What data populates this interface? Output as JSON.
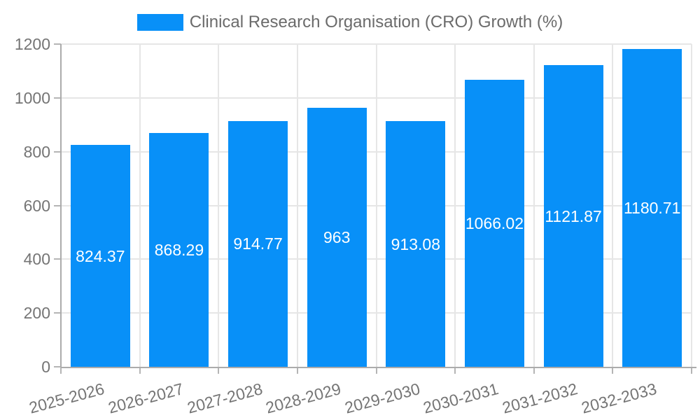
{
  "chart_data": {
    "type": "bar",
    "title": "Clinical Research Organisation (CRO) Growth (%)",
    "categories": [
      "2025-2026",
      "2026-2027",
      "2027-2028",
      "2028-2029",
      "2029-2030",
      "2030-2031",
      "2031-2032",
      "2032-2033"
    ],
    "values": [
      824.37,
      868.29,
      914.77,
      963,
      913.08,
      1066.02,
      1121.87,
      1180.71
    ],
    "value_labels": [
      "824.37",
      "868.29",
      "914.77",
      "963",
      "913.08",
      "1066.02",
      "1121.87",
      "1180.71"
    ],
    "xlabel": "",
    "ylabel": "",
    "ylim": [
      0,
      1200
    ],
    "yticks": [
      0,
      200,
      400,
      600,
      800,
      1000,
      1200
    ],
    "grid": true,
    "legend_position": "top-center",
    "xtick_rotation_deg": -15,
    "colors": {
      "bar": "#0890f8",
      "grid": "#e6e6e6",
      "axis": "#ababab",
      "tick": "#b5b5b5",
      "axis_label": "#757575",
      "legend_text": "#6b6b6b",
      "value_label": "#ffffff",
      "background": "#ffffff"
    }
  }
}
